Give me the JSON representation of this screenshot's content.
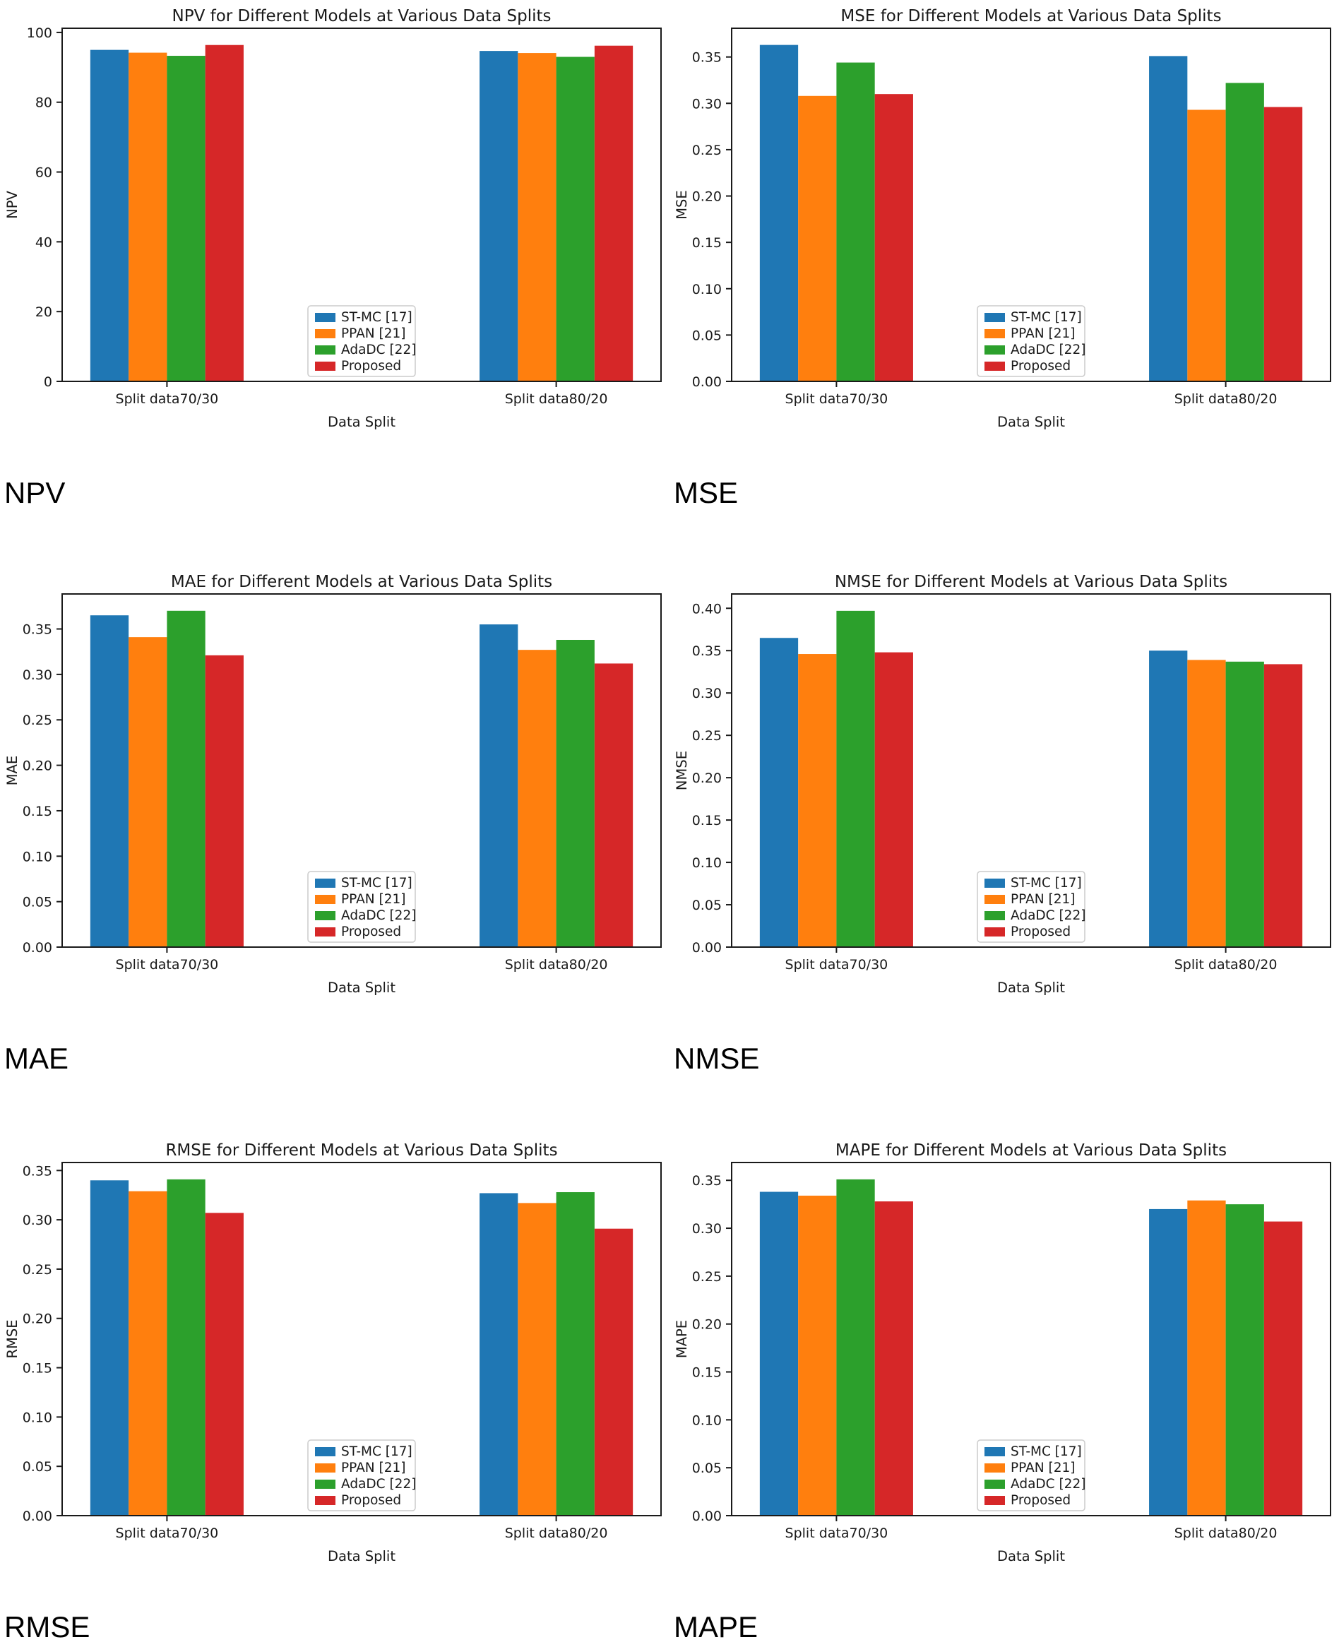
{
  "page": {
    "background": "#ffffff"
  },
  "shared": {
    "xlabel": "Data Split",
    "categories": [
      "Split data70/30",
      "Split data80/20"
    ],
    "legend_labels": [
      "ST-MC [17]",
      "PPAN [21]",
      "AdaDC [22]",
      "Proposed"
    ],
    "series_colors": {
      "ST-MC [17]": "#1f77b4",
      "PPAN [21]": "#ff7f0e",
      "AdaDC [22]": "#2ca02c",
      "Proposed": "#d62728"
    }
  },
  "chart_data": [
    {
      "type": "bar",
      "title": "NPV for Different Models at Various Data Splits",
      "xlabel": "Data Split",
      "ylabel": "NPV",
      "caption": "NPV",
      "categories": [
        "Split data70/30",
        "Split data80/20"
      ],
      "ylim": [
        0,
        101.2
      ],
      "yticks": [
        0,
        20,
        40,
        60,
        80,
        100
      ],
      "ytick_labels": [
        "0",
        "20",
        "40",
        "60",
        "80",
        "100"
      ],
      "legend_position": "lower center",
      "grid": false,
      "series": [
        {
          "name": "ST-MC [17]",
          "color": "#1f77b4",
          "values": [
            95.0,
            94.7
          ]
        },
        {
          "name": "PPAN [21]",
          "color": "#ff7f0e",
          "values": [
            94.2,
            94.1
          ]
        },
        {
          "name": "AdaDC [22]",
          "color": "#2ca02c",
          "values": [
            93.3,
            93.0
          ]
        },
        {
          "name": "Proposed",
          "color": "#d62728",
          "values": [
            96.4,
            96.2
          ]
        }
      ]
    },
    {
      "type": "bar",
      "title": "MSE for Different Models at Various Data Splits",
      "xlabel": "Data Split",
      "ylabel": "MSE",
      "caption": "MSE",
      "categories": [
        "Split data70/30",
        "Split data80/20"
      ],
      "ylim": [
        0,
        0.381
      ],
      "yticks": [
        0,
        0.05,
        0.1,
        0.15,
        0.2,
        0.25,
        0.3,
        0.35
      ],
      "ytick_labels": [
        "0.00",
        "0.05",
        "0.10",
        "0.15",
        "0.20",
        "0.25",
        "0.30",
        "0.35"
      ],
      "legend_position": "lower center",
      "grid": false,
      "series": [
        {
          "name": "ST-MC [17]",
          "color": "#1f77b4",
          "values": [
            0.363,
            0.351
          ]
        },
        {
          "name": "PPAN [21]",
          "color": "#ff7f0e",
          "values": [
            0.308,
            0.293
          ]
        },
        {
          "name": "AdaDC [22]",
          "color": "#2ca02c",
          "values": [
            0.344,
            0.322
          ]
        },
        {
          "name": "Proposed",
          "color": "#d62728",
          "values": [
            0.31,
            0.296
          ]
        }
      ]
    },
    {
      "type": "bar",
      "title": "MAE for Different Models at Various Data Splits",
      "xlabel": "Data Split",
      "ylabel": "MAE",
      "caption": "MAE",
      "categories": [
        "Split data70/30",
        "Split data80/20"
      ],
      "ylim": [
        0,
        0.3885
      ],
      "yticks": [
        0,
        0.05,
        0.1,
        0.15,
        0.2,
        0.25,
        0.3,
        0.35
      ],
      "ytick_labels": [
        "0.00",
        "0.05",
        "0.10",
        "0.15",
        "0.20",
        "0.25",
        "0.30",
        "0.35"
      ],
      "legend_position": "lower center",
      "grid": false,
      "series": [
        {
          "name": "ST-MC [17]",
          "color": "#1f77b4",
          "values": [
            0.365,
            0.355
          ]
        },
        {
          "name": "PPAN [21]",
          "color": "#ff7f0e",
          "values": [
            0.341,
            0.327
          ]
        },
        {
          "name": "AdaDC [22]",
          "color": "#2ca02c",
          "values": [
            0.37,
            0.338
          ]
        },
        {
          "name": "Proposed",
          "color": "#d62728",
          "values": [
            0.321,
            0.312
          ]
        }
      ]
    },
    {
      "type": "bar",
      "title": "NMSE for Different Models at Various Data Splits",
      "xlabel": "Data Split",
      "ylabel": "NMSE",
      "caption": "NMSE",
      "categories": [
        "Split data70/30",
        "Split data80/20"
      ],
      "ylim": [
        0,
        0.4169
      ],
      "yticks": [
        0,
        0.05,
        0.1,
        0.15,
        0.2,
        0.25,
        0.3,
        0.35,
        0.4
      ],
      "ytick_labels": [
        "0.00",
        "0.05",
        "0.10",
        "0.15",
        "0.20",
        "0.25",
        "0.30",
        "0.35",
        "0.40"
      ],
      "legend_position": "lower center",
      "grid": false,
      "series": [
        {
          "name": "ST-MC [17]",
          "color": "#1f77b4",
          "values": [
            0.365,
            0.35
          ]
        },
        {
          "name": "PPAN [21]",
          "color": "#ff7f0e",
          "values": [
            0.346,
            0.339
          ]
        },
        {
          "name": "AdaDC [22]",
          "color": "#2ca02c",
          "values": [
            0.397,
            0.337
          ]
        },
        {
          "name": "Proposed",
          "color": "#d62728",
          "values": [
            0.348,
            0.334
          ]
        }
      ]
    },
    {
      "type": "bar",
      "title": "RMSE for Different Models at Various Data Splits",
      "xlabel": "Data Split",
      "ylabel": "RMSE",
      "caption": "RMSE",
      "categories": [
        "Split data70/30",
        "Split data80/20"
      ],
      "ylim": [
        0,
        0.3581
      ],
      "yticks": [
        0,
        0.05,
        0.1,
        0.15,
        0.2,
        0.25,
        0.3,
        0.35
      ],
      "ytick_labels": [
        "0.00",
        "0.05",
        "0.10",
        "0.15",
        "0.20",
        "0.25",
        "0.30",
        "0.35"
      ],
      "legend_position": "lower center",
      "grid": false,
      "series": [
        {
          "name": "ST-MC [17]",
          "color": "#1f77b4",
          "values": [
            0.34,
            0.327
          ]
        },
        {
          "name": "PPAN [21]",
          "color": "#ff7f0e",
          "values": [
            0.329,
            0.317
          ]
        },
        {
          "name": "AdaDC [22]",
          "color": "#2ca02c",
          "values": [
            0.341,
            0.328
          ]
        },
        {
          "name": "Proposed",
          "color": "#d62728",
          "values": [
            0.307,
            0.291
          ]
        }
      ]
    },
    {
      "type": "bar",
      "title": "MAPE for Different Models at Various Data Splits",
      "xlabel": "Data Split",
      "ylabel": "MAPE",
      "caption": "MAPE",
      "categories": [
        "Split data70/30",
        "Split data80/20"
      ],
      "ylim": [
        0,
        0.3686
      ],
      "yticks": [
        0,
        0.05,
        0.1,
        0.15,
        0.2,
        0.25,
        0.3,
        0.35
      ],
      "ytick_labels": [
        "0.00",
        "0.05",
        "0.10",
        "0.15",
        "0.20",
        "0.25",
        "0.30",
        "0.35"
      ],
      "legend_position": "lower center",
      "grid": false,
      "series": [
        {
          "name": "ST-MC [17]",
          "color": "#1f77b4",
          "values": [
            0.338,
            0.32
          ]
        },
        {
          "name": "PPAN [21]",
          "color": "#ff7f0e",
          "values": [
            0.334,
            0.329
          ]
        },
        {
          "name": "AdaDC [22]",
          "color": "#2ca02c",
          "values": [
            0.351,
            0.325
          ]
        },
        {
          "name": "Proposed",
          "color": "#d62728",
          "values": [
            0.328,
            0.307
          ]
        }
      ]
    }
  ]
}
